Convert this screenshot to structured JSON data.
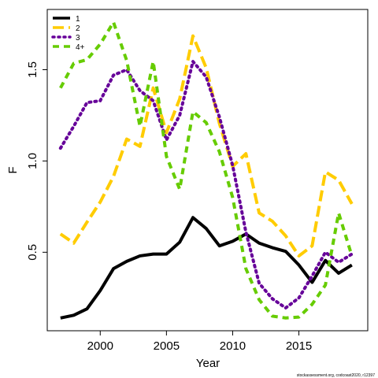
{
  "chart_data": {
    "type": "line",
    "x_label": "Year",
    "y_label": "F",
    "footnote": "stockassessment.org, codcoast2020, r12397",
    "x": [
      1997,
      1998,
      1999,
      2000,
      2001,
      2002,
      2003,
      2004,
      2005,
      2006,
      2007,
      2008,
      2009,
      2010,
      2011,
      2012,
      2013,
      2014,
      2015,
      2016,
      2017,
      2018,
      2019
    ],
    "series": [
      {
        "name": "1",
        "color": "#000000",
        "dash": "solid",
        "values": [
          0.14,
          0.155,
          0.19,
          0.29,
          0.41,
          0.45,
          0.48,
          0.49,
          0.49,
          0.555,
          0.69,
          0.63,
          0.535,
          0.56,
          0.6,
          0.55,
          0.525,
          0.505,
          0.43,
          0.335,
          0.455,
          0.385,
          0.43
        ]
      },
      {
        "name": "2",
        "color": "#ffcc00",
        "dash": "long",
        "values": [
          0.6,
          0.55,
          0.665,
          0.775,
          0.915,
          1.12,
          1.08,
          1.4,
          1.155,
          1.34,
          1.685,
          1.51,
          1.205,
          0.97,
          1.04,
          0.715,
          0.67,
          0.59,
          0.48,
          0.535,
          0.94,
          0.895,
          0.765
        ]
      },
      {
        "name": "3",
        "color": "#660099",
        "dash": "dotted",
        "values": [
          1.07,
          1.19,
          1.32,
          1.33,
          1.47,
          1.5,
          1.385,
          1.33,
          1.115,
          1.25,
          1.545,
          1.46,
          1.24,
          0.975,
          0.61,
          0.33,
          0.245,
          0.195,
          0.25,
          0.37,
          0.5,
          0.445,
          0.49
        ]
      },
      {
        "name": "4+",
        "color": "#66cc00",
        "dash": "dashed",
        "values": [
          1.4,
          1.535,
          1.555,
          1.64,
          1.76,
          1.55,
          1.19,
          1.545,
          1.025,
          0.845,
          1.27,
          1.21,
          1.05,
          0.8,
          0.41,
          0.24,
          0.15,
          0.14,
          0.145,
          0.215,
          0.32,
          0.715,
          0.48
        ]
      }
    ],
    "xlim": [
      1996,
      2020.2
    ],
    "ylim": [
      0.07,
      1.83
    ],
    "xticks": [
      2000,
      2005,
      2010,
      2015
    ],
    "yticks": [
      0.5,
      {
        "value": 1.0,
        "label": "1.0"
      },
      1.5
    ],
    "legend": "top-left"
  }
}
